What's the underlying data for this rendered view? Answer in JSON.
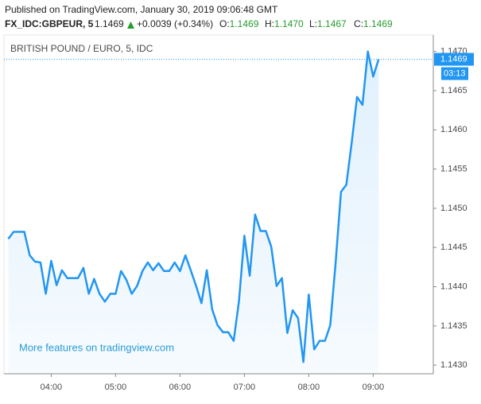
{
  "header": {
    "published": "Published on TradingView.com, January 30, 2019 09:06:48 GMT",
    "symbol": "FX_IDC:GBPEUR, 5",
    "last": "1.1469",
    "change": "+0.0039 (+0.34%)",
    "ohlc": [
      {
        "label": "O:",
        "value": "1.1469"
      },
      {
        "label": "H:",
        "value": "1.1470"
      },
      {
        "label": "L:",
        "value": "1.1467"
      },
      {
        "label": "C:",
        "value": "1.1469"
      }
    ]
  },
  "chart_data": {
    "type": "line",
    "title": "BRITISH POUND / EURO, 5, IDC",
    "annotation": "More features on tradingview.com",
    "x": [
      "03:20",
      "03:25",
      "03:30",
      "03:35",
      "03:40",
      "03:45",
      "03:50",
      "03:55",
      "04:00",
      "04:05",
      "04:10",
      "04:15",
      "04:20",
      "04:25",
      "04:30",
      "04:35",
      "04:40",
      "04:45",
      "04:50",
      "04:55",
      "05:00",
      "05:05",
      "05:10",
      "05:15",
      "05:20",
      "05:25",
      "05:30",
      "05:35",
      "05:40",
      "05:45",
      "05:50",
      "05:55",
      "06:00",
      "06:05",
      "06:10",
      "06:15",
      "06:20",
      "06:25",
      "06:30",
      "06:35",
      "06:40",
      "06:45",
      "06:50",
      "06:55",
      "07:00",
      "07:05",
      "07:10",
      "07:15",
      "07:20",
      "07:25",
      "07:30",
      "07:35",
      "07:40",
      "07:45",
      "07:50",
      "07:55",
      "08:00",
      "08:05",
      "08:10",
      "08:15",
      "08:20",
      "08:25",
      "08:30",
      "08:35",
      "08:40",
      "08:45",
      "08:50",
      "08:55",
      "09:00",
      "09:05"
    ],
    "series": [
      {
        "name": "GBPEUR",
        "color": "#2196f3",
        "values": [
          1.14461,
          1.1447,
          1.1447,
          1.1447,
          1.1444,
          1.14432,
          1.14431,
          1.14391,
          1.14433,
          1.14402,
          1.14421,
          1.14411,
          1.14411,
          1.14411,
          1.14424,
          1.14391,
          1.1441,
          1.14391,
          1.14381,
          1.14391,
          1.14391,
          1.1442,
          1.14409,
          1.14391,
          1.14401,
          1.1442,
          1.14431,
          1.14421,
          1.1443,
          1.1442,
          1.1442,
          1.14431,
          1.1442,
          1.1444,
          1.14421,
          1.14401,
          1.14379,
          1.14421,
          1.14371,
          1.14351,
          1.14342,
          1.14342,
          1.14331,
          1.14382,
          1.14465,
          1.14414,
          1.14492,
          1.14471,
          1.14471,
          1.14451,
          1.14401,
          1.14411,
          1.14341,
          1.1437,
          1.1436,
          1.14304,
          1.1439,
          1.1432,
          1.14331,
          1.14331,
          1.14351,
          1.1443,
          1.14521,
          1.1453,
          1.14584,
          1.14642,
          1.14632,
          1.147,
          1.14668,
          1.1469
        ]
      }
    ],
    "price_label": "1.1469",
    "countdown": "03:13",
    "xlim": [
      "03:16",
      "09:56"
    ],
    "xticks": [
      "04:00",
      "05:00",
      "06:00",
      "07:00",
      "08:00",
      "09:00"
    ],
    "ylim": [
      1.14289,
      1.14721
    ],
    "yticks": [
      {
        "value": 1.143,
        "label": "1.1430"
      },
      {
        "value": 1.1435,
        "label": "1.1435"
      },
      {
        "value": 1.144,
        "label": "1.1440"
      },
      {
        "value": 1.1445,
        "label": "1.1445"
      },
      {
        "value": 1.145,
        "label": "1.1450"
      },
      {
        "value": 1.1455,
        "label": "1.1455"
      },
      {
        "value": 1.146,
        "label": "1.1460"
      },
      {
        "value": 1.1465,
        "label": "1.1465"
      },
      {
        "value": 1.147,
        "label": "1.1470"
      }
    ],
    "grid": false
  }
}
